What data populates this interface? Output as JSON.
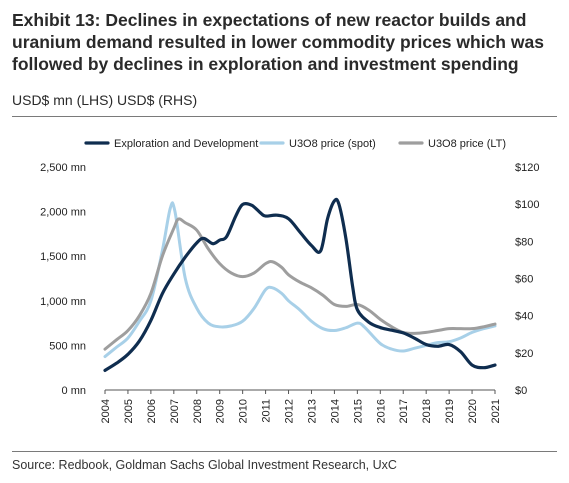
{
  "header": {
    "title": "Exhibit 13: Declines in expectations of new reactor builds and uranium demand resulted in lower commodity prices which was followed by declines in exploration and investment spending",
    "subtitle": "USD$ mn (LHS) USD$ (RHS)"
  },
  "footer": {
    "source": "Source: Redbook, Goldman Sachs Global Investment Research, UxC"
  },
  "chart_data": {
    "type": "line",
    "title": "",
    "x": [
      "2004",
      "2005",
      "2006",
      "2007",
      "2008",
      "2009",
      "2010",
      "2011",
      "2012",
      "2013",
      "2014",
      "2015",
      "2016",
      "2017",
      "2018",
      "2019",
      "2020",
      "2021"
    ],
    "left_axis": {
      "ylim": [
        0,
        2500
      ],
      "ticks": [
        0,
        500,
        1000,
        1500,
        2000,
        2500
      ],
      "tick_labels": [
        "0 mn",
        "500 mn",
        "1,000 mn",
        "1,500 mn",
        "2,000 mn",
        "2,500 mn"
      ]
    },
    "right_axis": {
      "ylim": [
        0,
        120
      ],
      "ticks": [
        0,
        20,
        40,
        60,
        80,
        100,
        120
      ],
      "tick_labels": [
        "$0",
        "$20",
        "$40",
        "$60",
        "$80",
        "$100",
        "$120"
      ]
    },
    "legend_position": "top",
    "grid": false,
    "series": [
      {
        "name": "Exploration and Development",
        "axis": "left",
        "color": "#0f2d4f",
        "points": [
          [
            0,
            220
          ],
          [
            0.5,
            300
          ],
          [
            1,
            400
          ],
          [
            1.5,
            550
          ],
          [
            2,
            780
          ],
          [
            2.5,
            1080
          ],
          [
            3,
            1300
          ],
          [
            3.5,
            1490
          ],
          [
            4,
            1650
          ],
          [
            4.3,
            1700
          ],
          [
            4.7,
            1640
          ],
          [
            5,
            1680
          ],
          [
            5.3,
            1720
          ],
          [
            5.7,
            1950
          ],
          [
            6,
            2080
          ],
          [
            6.4,
            2070
          ],
          [
            6.8,
            1980
          ],
          [
            7,
            1950
          ],
          [
            7.5,
            1960
          ],
          [
            8,
            1920
          ],
          [
            8.5,
            1770
          ],
          [
            9,
            1620
          ],
          [
            9.4,
            1560
          ],
          [
            9.7,
            1920
          ],
          [
            10,
            2120
          ],
          [
            10.2,
            2080
          ],
          [
            10.5,
            1700
          ],
          [
            10.8,
            1150
          ],
          [
            11,
            900
          ],
          [
            11.5,
            760
          ],
          [
            12,
            700
          ],
          [
            12.5,
            670
          ],
          [
            13,
            640
          ],
          [
            13.5,
            580
          ],
          [
            14,
            510
          ],
          [
            14.5,
            490
          ],
          [
            15,
            510
          ],
          [
            15.5,
            430
          ],
          [
            16,
            280
          ],
          [
            16.5,
            250
          ],
          [
            17,
            280
          ]
        ]
      },
      {
        "name": "U3O8 price (spot)",
        "axis": "right",
        "color": "#a8d0e8",
        "points": [
          [
            0,
            18
          ],
          [
            0.5,
            23
          ],
          [
            1,
            28
          ],
          [
            1.5,
            37
          ],
          [
            2,
            48
          ],
          [
            2.5,
            75
          ],
          [
            2.85,
            98
          ],
          [
            3.05,
            96
          ],
          [
            3.5,
            60
          ],
          [
            4,
            44
          ],
          [
            4.5,
            36
          ],
          [
            5,
            34
          ],
          [
            5.5,
            34.5
          ],
          [
            6,
            37
          ],
          [
            6.5,
            44
          ],
          [
            7,
            54
          ],
          [
            7.3,
            55
          ],
          [
            7.7,
            52
          ],
          [
            8,
            48
          ],
          [
            8.5,
            43
          ],
          [
            9,
            37
          ],
          [
            9.5,
            33
          ],
          [
            10,
            32
          ],
          [
            10.5,
            33.5
          ],
          [
            11,
            36
          ],
          [
            11.3,
            34
          ],
          [
            12,
            25
          ],
          [
            12.5,
            22
          ],
          [
            13,
            21
          ],
          [
            13.5,
            22.5
          ],
          [
            14,
            24
          ],
          [
            14.5,
            25.5
          ],
          [
            15,
            26
          ],
          [
            15.5,
            28
          ],
          [
            16,
            31
          ],
          [
            16.5,
            33
          ],
          [
            17,
            34.5
          ]
        ]
      },
      {
        "name": "U3O8 price (LT)",
        "axis": "right",
        "color": "#9e9e9e",
        "points": [
          [
            0,
            22
          ],
          [
            0.5,
            27
          ],
          [
            1,
            32
          ],
          [
            1.5,
            40
          ],
          [
            2,
            52
          ],
          [
            2.5,
            72
          ],
          [
            3,
            87
          ],
          [
            3.2,
            92
          ],
          [
            3.5,
            90
          ],
          [
            4,
            86
          ],
          [
            4.5,
            76
          ],
          [
            5,
            68
          ],
          [
            5.5,
            63
          ],
          [
            6,
            61
          ],
          [
            6.5,
            63
          ],
          [
            7,
            68
          ],
          [
            7.3,
            69
          ],
          [
            7.7,
            66
          ],
          [
            8,
            62
          ],
          [
            8.5,
            58
          ],
          [
            9,
            55
          ],
          [
            9.5,
            51
          ],
          [
            10,
            46
          ],
          [
            10.5,
            45
          ],
          [
            11,
            46
          ],
          [
            11.5,
            43
          ],
          [
            12,
            38
          ],
          [
            12.5,
            34
          ],
          [
            13,
            31
          ],
          [
            13.5,
            30.5
          ],
          [
            14,
            31
          ],
          [
            14.5,
            32
          ],
          [
            15,
            33
          ],
          [
            15.5,
            33
          ],
          [
            16,
            33
          ],
          [
            16.5,
            34
          ],
          [
            17,
            35.5
          ]
        ]
      }
    ]
  }
}
